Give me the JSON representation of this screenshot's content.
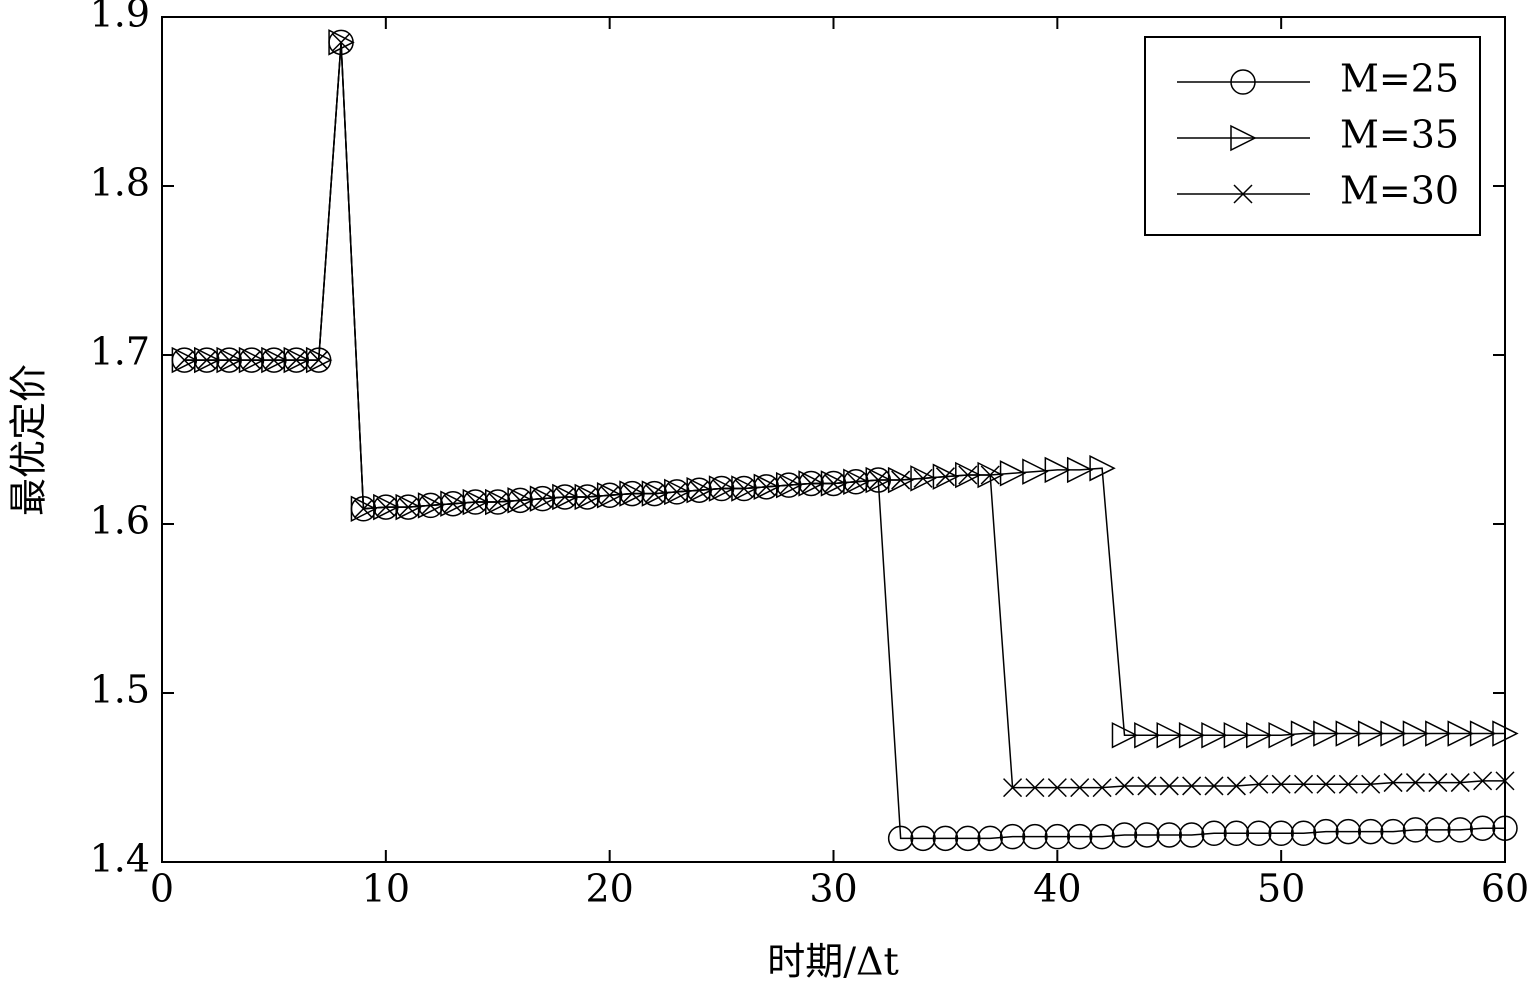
{
  "chart_data": {
    "type": "line",
    "xlabel": "时期/Δt",
    "ylabel": "最优定价",
    "x": [
      1,
      2,
      3,
      4,
      5,
      6,
      7,
      8,
      9,
      10,
      11,
      12,
      13,
      14,
      15,
      16,
      17,
      18,
      19,
      20,
      21,
      22,
      23,
      24,
      25,
      26,
      27,
      28,
      29,
      30,
      31,
      32,
      33,
      34,
      35,
      36,
      37,
      38,
      39,
      40,
      41,
      42,
      43,
      44,
      45,
      46,
      47,
      48,
      49,
      50,
      51,
      52,
      53,
      54,
      55,
      56,
      57,
      58,
      59,
      60
    ],
    "series": [
      {
        "name": "M=25",
        "color": "#000000",
        "marker": "circle",
        "values": [
          1.697,
          1.697,
          1.697,
          1.697,
          1.697,
          1.697,
          1.697,
          1.885,
          1.609,
          1.61,
          1.61,
          1.611,
          1.612,
          1.613,
          1.613,
          1.614,
          1.615,
          1.616,
          1.616,
          1.617,
          1.618,
          1.618,
          1.619,
          1.62,
          1.621,
          1.621,
          1.622,
          1.623,
          1.624,
          1.624,
          1.625,
          1.626,
          1.414,
          1.414,
          1.414,
          1.414,
          1.414,
          1.415,
          1.415,
          1.415,
          1.415,
          1.415,
          1.416,
          1.416,
          1.416,
          1.416,
          1.417,
          1.417,
          1.417,
          1.417,
          1.417,
          1.418,
          1.418,
          1.418,
          1.418,
          1.419,
          1.419,
          1.419,
          1.42,
          1.42
        ]
      },
      {
        "name": "M=35",
        "color": "#000000",
        "marker": "triangle-right",
        "values": [
          1.697,
          1.697,
          1.697,
          1.697,
          1.697,
          1.697,
          1.697,
          1.885,
          1.609,
          1.61,
          1.61,
          1.611,
          1.612,
          1.613,
          1.613,
          1.614,
          1.615,
          1.616,
          1.616,
          1.617,
          1.618,
          1.618,
          1.619,
          1.62,
          1.621,
          1.621,
          1.622,
          1.623,
          1.624,
          1.624,
          1.625,
          1.626,
          1.626,
          1.627,
          1.628,
          1.629,
          1.629,
          1.63,
          1.631,
          1.632,
          1.632,
          1.633,
          1.475,
          1.475,
          1.475,
          1.475,
          1.475,
          1.475,
          1.475,
          1.475,
          1.476,
          1.476,
          1.476,
          1.476,
          1.476,
          1.476,
          1.476,
          1.476,
          1.476,
          1.476
        ]
      },
      {
        "name": "M=30",
        "color": "#000000",
        "marker": "x",
        "values": [
          1.697,
          1.697,
          1.697,
          1.697,
          1.697,
          1.697,
          1.697,
          1.885,
          1.609,
          1.61,
          1.61,
          1.611,
          1.612,
          1.613,
          1.613,
          1.614,
          1.615,
          1.616,
          1.616,
          1.617,
          1.618,
          1.618,
          1.619,
          1.62,
          1.621,
          1.621,
          1.622,
          1.623,
          1.624,
          1.624,
          1.625,
          1.626,
          1.626,
          1.627,
          1.628,
          1.629,
          1.629,
          1.444,
          1.444,
          1.444,
          1.444,
          1.444,
          1.445,
          1.445,
          1.445,
          1.445,
          1.445,
          1.445,
          1.446,
          1.446,
          1.446,
          1.446,
          1.446,
          1.446,
          1.447,
          1.447,
          1.447,
          1.447,
          1.448,
          1.448
        ]
      }
    ],
    "xlim": [
      0,
      60
    ],
    "xticks": [
      0,
      10,
      20,
      30,
      40,
      50,
      60
    ],
    "ylim": [
      1.4,
      1.9
    ],
    "yticks": [
      1.4,
      1.5,
      1.6,
      1.7,
      1.8,
      1.9
    ],
    "grid": false,
    "legend": "upper right"
  }
}
